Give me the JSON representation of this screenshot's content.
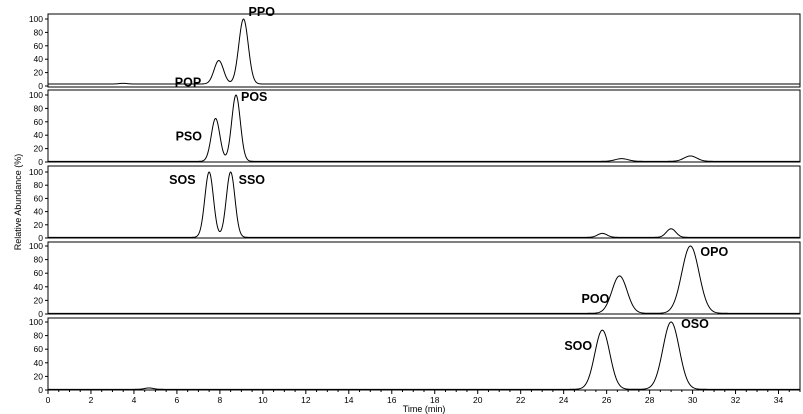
{
  "chart_data": {
    "type": "line",
    "xlabel": "Time (min)",
    "ylabel": "Relative Abundance (%)",
    "xlim": [
      0,
      35
    ],
    "x_ticks": [
      "0",
      "2",
      "4",
      "6",
      "8",
      "10",
      "12",
      "14",
      "16",
      "18",
      "20",
      "22",
      "24",
      "26",
      "28",
      "30",
      "32",
      "34"
    ],
    "y_ticks": [
      "0",
      "20",
      "40",
      "60",
      "80",
      "100"
    ],
    "grid": false,
    "panels": [
      {
        "baseline": 3,
        "peaks": [
          {
            "label": "",
            "rt": 3.5,
            "height": 4,
            "width": 0.18
          },
          {
            "label": "POP",
            "rt": 7.95,
            "height": 38,
            "width": 0.22
          },
          {
            "label": "PPO",
            "rt": 9.1,
            "height": 100,
            "width": 0.22
          }
        ]
      },
      {
        "baseline": 1,
        "peaks": [
          {
            "label": "PSO",
            "rt": 7.8,
            "height": 65,
            "width": 0.2
          },
          {
            "label": "POS",
            "rt": 8.75,
            "height": 100,
            "width": 0.2
          },
          {
            "label": "",
            "rt": 26.7,
            "height": 5,
            "width": 0.3
          },
          {
            "label": "",
            "rt": 29.9,
            "height": 9,
            "width": 0.3
          }
        ]
      },
      {
        "baseline": 1,
        "peaks": [
          {
            "label": "SOS",
            "rt": 7.5,
            "height": 100,
            "width": 0.2
          },
          {
            "label": "SSO",
            "rt": 8.5,
            "height": 100,
            "width": 0.2
          },
          {
            "label": "",
            "rt": 25.8,
            "height": 7,
            "width": 0.22
          },
          {
            "label": "",
            "rt": 29.0,
            "height": 14,
            "width": 0.22
          }
        ]
      },
      {
        "baseline": 1,
        "peaks": [
          {
            "label": "POO",
            "rt": 26.6,
            "height": 56,
            "width": 0.35
          },
          {
            "label": "OPO",
            "rt": 29.9,
            "height": 100,
            "width": 0.4
          }
        ]
      },
      {
        "baseline": 1,
        "peaks": [
          {
            "label": "",
            "rt": 4.7,
            "height": 3,
            "width": 0.2
          },
          {
            "label": "SOO",
            "rt": 25.8,
            "height": 88,
            "width": 0.35
          },
          {
            "label": "OSO",
            "rt": 29.0,
            "height": 100,
            "width": 0.38
          }
        ]
      }
    ]
  }
}
